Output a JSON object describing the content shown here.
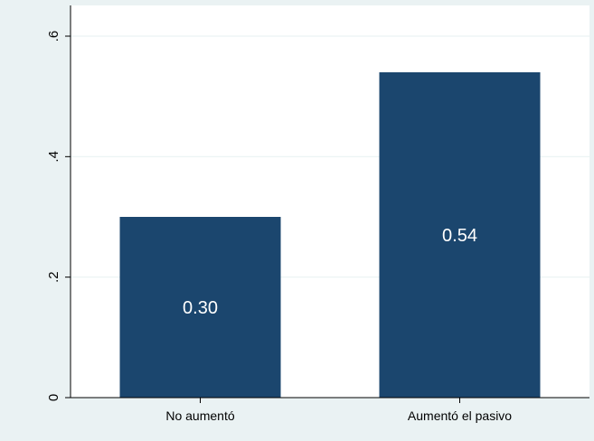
{
  "chart_data": {
    "type": "bar",
    "categories": [
      "No aumentó",
      "Aumentó el pasivo"
    ],
    "values": [
      0.3,
      0.54
    ],
    "value_labels": [
      "0.30",
      "0.54"
    ],
    "yticks": [
      0,
      0.2,
      0.4,
      0.6
    ],
    "ytick_labels": [
      "0",
      ".2",
      ".4",
      ".6"
    ],
    "ylim": [
      0,
      0.6
    ],
    "title": "",
    "xlabel": "",
    "ylabel": "",
    "grid": true,
    "colors": {
      "bar": "#1b466e",
      "outer_background": "#eaf2f3",
      "plot_background": "#ffffff",
      "grid": "#eaf2f3",
      "axis": "#000000",
      "value_label": "#ffffff"
    }
  }
}
